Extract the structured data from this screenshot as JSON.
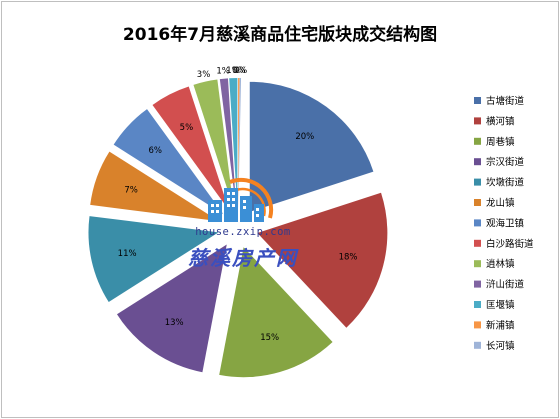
{
  "chart_data": {
    "type": "pie",
    "title": "2016年7月慈溪商品住宅版块成交结构图",
    "legend_position": "right",
    "categories": [
      "古塘街道",
      "横河镇",
      "周巷镇",
      "宗汉街道",
      "坎墩街道",
      "龙山镇",
      "观海卫镇",
      "白沙路街道",
      "逍林镇",
      "浒山街道",
      "匡堰镇",
      "新浦镇",
      "长河镇"
    ],
    "values": [
      20,
      18,
      15,
      13,
      11,
      7,
      6,
      5,
      3,
      1,
      1,
      0,
      0
    ],
    "value_labels": [
      "20%",
      "18%",
      "15%",
      "13%",
      "11%",
      "7%",
      "6%",
      "5%",
      "3%",
      "1%",
      "1%",
      "0%",
      "0%"
    ],
    "colors": [
      "#4a70a8",
      "#b0413e",
      "#86a543",
      "#6a4f92",
      "#3a8ea8",
      "#d9822b",
      "#5a86c5",
      "#d24f4f",
      "#9bbb59",
      "#8064a2",
      "#4bacc6",
      "#f79646",
      "#9fb4d8"
    ]
  },
  "watermark": {
    "url": "house.zxip.com",
    "name": "慈溪房产网"
  }
}
